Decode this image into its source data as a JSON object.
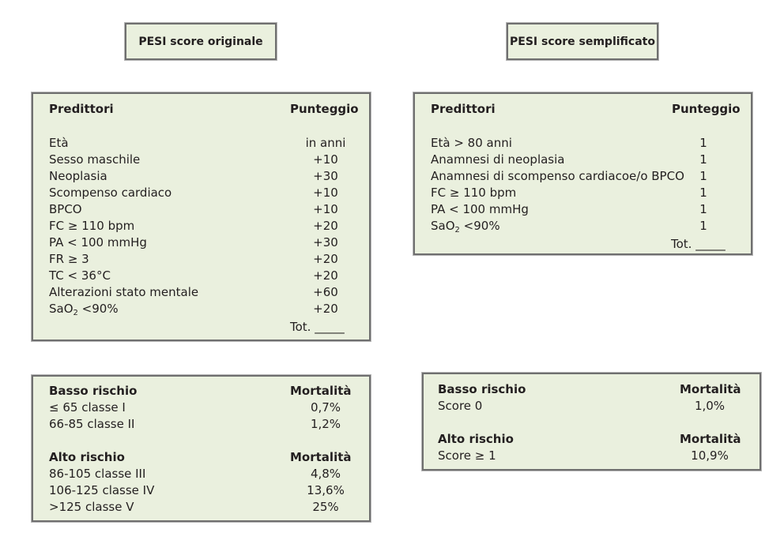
{
  "original": {
    "title": "PESI score originale",
    "header": {
      "predictors": "Predittori",
      "score": "Punteggio"
    },
    "rows": [
      {
        "label": "Età",
        "value": "in anni"
      },
      {
        "label": "Sesso maschile",
        "value": "+10"
      },
      {
        "label": "Neoplasia",
        "value": "+30"
      },
      {
        "label": "Scompenso cardiaco",
        "value": "+10"
      },
      {
        "label": "BPCO",
        "value": "+10"
      },
      {
        "label": "FC ≥ 110 bpm",
        "value": "+20"
      },
      {
        "label": "PA < 100 mmHg",
        "value": "+30"
      },
      {
        "label": "FR ≥ 3",
        "value": "+20"
      },
      {
        "label": "TC < 36°C",
        "value": "+20"
      },
      {
        "label": "Alterazioni stato mentale",
        "value": "+60"
      },
      {
        "label_prefix": "SaO",
        "label_sub": "2",
        "label_suffix": " <90%",
        "value": "+20"
      }
    ],
    "total": "Tot. _____",
    "risk": {
      "low": {
        "header": "Basso rischio",
        "mortality_header": "Mortalità",
        "rows": [
          {
            "label": "≤ 65 classe I",
            "value": "0,7%"
          },
          {
            "label": "66-85 classe II",
            "value": "1,2%"
          }
        ]
      },
      "high": {
        "header": "Alto rischio",
        "mortality_header": "Mortalità",
        "rows": [
          {
            "label": "86-105 classe III",
            "value": "4,8%"
          },
          {
            "label": "106-125 classe IV",
            "value": "13,6%"
          },
          {
            "label": ">125 classe V",
            "value": "25%"
          }
        ]
      }
    }
  },
  "simplified": {
    "title": "PESI score semplificato",
    "header": {
      "predictors": "Predittori",
      "score": "Punteggio"
    },
    "rows": [
      {
        "label": "Età > 80 anni",
        "value": "1"
      },
      {
        "label": "Anamnesi di neoplasia",
        "value": "1"
      },
      {
        "label": "Anamnesi di scompenso cardiacoe/o BPCO",
        "value": "1"
      },
      {
        "label": "FC ≥ 110 bpm",
        "value": "1"
      },
      {
        "label": "PA < 100 mmHg",
        "value": "1"
      },
      {
        "label_prefix": "SaO",
        "label_sub": "2",
        "label_suffix": " <90%",
        "value": "1"
      }
    ],
    "total": "Tot. _____",
    "risk": {
      "low": {
        "header": "Basso rischio",
        "mortality_header": "Mortalità",
        "rows": [
          {
            "label": "Score 0",
            "value": "1,0%"
          }
        ]
      },
      "high": {
        "header": "Alto rischio",
        "mortality_header": "Mortalità",
        "rows": [
          {
            "label": "Score ≥ 1",
            "value": "10,9%"
          }
        ]
      }
    }
  }
}
